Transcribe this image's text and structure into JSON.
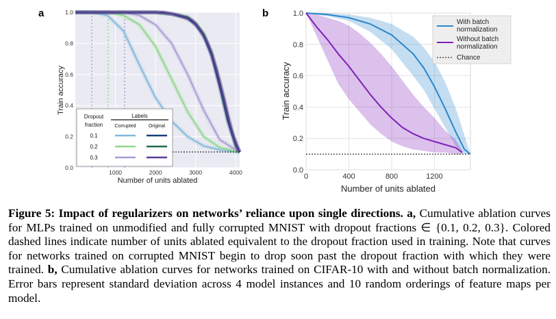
{
  "figure_number": "Figure 5:",
  "caption": {
    "title": "Impact of regularizers on networks’ reliance upon single directions.",
    "part_a_label": "a,",
    "part_a_text": "Cumulative ablation curves for MLPs trained on unmodified and fully corrupted MNIST with dropout fractions ∈ {0.1, 0.2, 0.3}. Colored dashed lines indicate number of units ablated equivalent to the dropout fraction used in training. Note that curves for networks trained on corrupted MNIST begin to drop soon past the dropout fraction with which they were trained.",
    "part_b_label": "b,",
    "part_b_text": "Cumulative ablation curves for networks trained on CIFAR-10 with and without batch normalization. Error bars represent standard deviation across 4 model instances and 10 random orderings of feature maps per model."
  },
  "colors": {
    "light_blue": "#7fb8dc",
    "dark_blue": "#173d78",
    "light_green": "#8ed88a",
    "dark_green": "#1f6b48",
    "light_purple": "#a99bd3",
    "dark_purple": "#5c3a96",
    "bn_blue": "#2a86cc",
    "nobn_purple": "#7e1fb8",
    "chance": "#000000"
  },
  "chart_data": [
    {
      "panel": "a",
      "type": "line",
      "xlabel": "Number of units ablated",
      "ylabel": "Train accuracy",
      "xlim": [
        0,
        4096
      ],
      "ylim": [
        0,
        1.0
      ],
      "xticks": [
        1000,
        2000,
        3000,
        4000
      ],
      "xtick_labels": [
        "1000",
        "2000",
        "3000",
        "4000"
      ],
      "yticks": [
        0.0,
        0.2,
        0.4,
        0.6,
        0.8,
        1.0
      ],
      "ytick_labels": [
        "0.0",
        "0.2",
        "0.4",
        "0.6",
        "0.8",
        "1.0"
      ],
      "grid": true,
      "chance_level": 0.1,
      "dropout_lines": [
        {
          "dropout": 0.1,
          "x": 410,
          "color": "light_blue"
        },
        {
          "dropout": 0.2,
          "x": 820,
          "color": "light_green"
        },
        {
          "dropout": 0.3,
          "x": 1230,
          "color": "light_purple"
        }
      ],
      "legend": {
        "placement": "bottom-left",
        "header_left": "Dropout\nfraction",
        "header_left_line1": "Dropout",
        "header_left_line2": "fraction",
        "header_right": "Labels",
        "col_corrupted": "Corrupted",
        "col_original": "Original",
        "rows": [
          "0.1",
          "0.2",
          "0.3"
        ]
      },
      "series": [
        {
          "label_group": "Corrupted",
          "dropout": "0.1",
          "color": "light_blue",
          "x": [
            0,
            410,
            800,
            1200,
            1600,
            2000,
            2400,
            2800,
            3200,
            3600,
            4096
          ],
          "y": [
            1.0,
            1.0,
            0.98,
            0.88,
            0.66,
            0.45,
            0.3,
            0.2,
            0.14,
            0.115,
            0.1
          ]
        },
        {
          "label_group": "Corrupted",
          "dropout": "0.2",
          "color": "light_green",
          "x": [
            0,
            820,
            1200,
            1600,
            2000,
            2400,
            2800,
            3200,
            3600,
            4096
          ],
          "y": [
            1.0,
            1.0,
            0.98,
            0.92,
            0.78,
            0.57,
            0.36,
            0.2,
            0.13,
            0.1
          ]
        },
        {
          "label_group": "Corrupted",
          "dropout": "0.3",
          "color": "light_purple",
          "x": [
            0,
            1230,
            1600,
            2000,
            2400,
            2800,
            3200,
            3600,
            4096
          ],
          "y": [
            1.0,
            1.0,
            0.98,
            0.92,
            0.8,
            0.6,
            0.37,
            0.18,
            0.1
          ]
        },
        {
          "label_group": "Original",
          "dropout": "0.1",
          "color": "dark_blue",
          "x": [
            0,
            2000,
            2400,
            2800,
            3000,
            3200,
            3400,
            3600,
            3800,
            4000,
            4096
          ],
          "y": [
            1.0,
            1.0,
            0.99,
            0.96,
            0.92,
            0.85,
            0.72,
            0.52,
            0.3,
            0.14,
            0.1
          ]
        },
        {
          "label_group": "Original",
          "dropout": "0.2",
          "color": "dark_green",
          "x": [
            0,
            2000,
            2400,
            2800,
            3000,
            3200,
            3400,
            3600,
            3800,
            4000,
            4096
          ],
          "y": [
            1.0,
            1.0,
            0.99,
            0.97,
            0.93,
            0.86,
            0.74,
            0.55,
            0.33,
            0.15,
            0.1
          ]
        },
        {
          "label_group": "Original",
          "dropout": "0.3",
          "color": "dark_purple",
          "x": [
            0,
            2200,
            2600,
            2900,
            3100,
            3300,
            3500,
            3700,
            3900,
            4096
          ],
          "y": [
            1.0,
            1.0,
            0.98,
            0.95,
            0.89,
            0.8,
            0.65,
            0.45,
            0.23,
            0.1
          ]
        }
      ]
    },
    {
      "panel": "b",
      "type": "line",
      "xlabel": "Number of units ablated",
      "ylabel": "Train accuracy",
      "xlim": [
        0,
        1536
      ],
      "ylim": [
        0,
        1.0
      ],
      "xticks": [
        0,
        400,
        800,
        1200
      ],
      "xtick_labels": [
        "0",
        "400",
        "800",
        "1200"
      ],
      "yticks": [
        0.0,
        0.2,
        0.4,
        0.6,
        0.8,
        1.0
      ],
      "ytick_labels": [
        "0.0",
        "0.2",
        "0.4",
        "0.6",
        "0.8",
        "1.0"
      ],
      "grid": true,
      "legend": {
        "placement": "top-right"
      },
      "chance_level": 0.1,
      "series": [
        {
          "name": "With batch normalization",
          "name_line1": "With batch",
          "name_line2": "normalization",
          "color": "bn_blue",
          "x": [
            0,
            200,
            400,
            600,
            800,
            1000,
            1100,
            1200,
            1300,
            1400,
            1480,
            1536
          ],
          "y": [
            1.0,
            0.99,
            0.97,
            0.93,
            0.86,
            0.74,
            0.65,
            0.53,
            0.39,
            0.24,
            0.13,
            0.1
          ],
          "upper": [
            1.0,
            1.0,
            0.99,
            0.97,
            0.93,
            0.85,
            0.78,
            0.69,
            0.56,
            0.39,
            0.22,
            0.1
          ],
          "lower": [
            1.0,
            0.98,
            0.95,
            0.88,
            0.77,
            0.6,
            0.51,
            0.39,
            0.27,
            0.15,
            0.1,
            0.1
          ]
        },
        {
          "name": "Without batch normalization",
          "name_line1": "Without batch",
          "name_line2": "normalization",
          "color": "nobn_purple",
          "x": [
            0,
            100,
            200,
            300,
            400,
            500,
            600,
            700,
            800,
            900,
            1000,
            1100,
            1200,
            1300,
            1400,
            1460
          ],
          "y": [
            1.0,
            0.91,
            0.83,
            0.74,
            0.66,
            0.57,
            0.48,
            0.4,
            0.33,
            0.27,
            0.23,
            0.2,
            0.18,
            0.16,
            0.14,
            0.11
          ],
          "upper": [
            1.0,
            0.99,
            0.97,
            0.95,
            0.92,
            0.87,
            0.81,
            0.74,
            0.66,
            0.57,
            0.48,
            0.4,
            0.33,
            0.25,
            0.19,
            0.12
          ],
          "lower": [
            1.0,
            0.85,
            0.7,
            0.55,
            0.45,
            0.37,
            0.29,
            0.23,
            0.18,
            0.15,
            0.13,
            0.12,
            0.11,
            0.11,
            0.1,
            0.1
          ]
        },
        {
          "name": "Chance",
          "color": "chance",
          "style": "dashed",
          "x": [
            0,
            1536
          ],
          "y": [
            0.1,
            0.1
          ]
        }
      ]
    }
  ]
}
